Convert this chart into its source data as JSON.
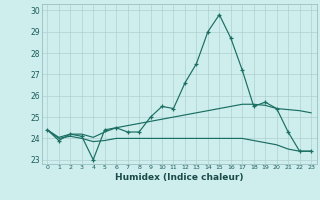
{
  "xlabel": "Humidex (Indice chaleur)",
  "bg_color": "#ceeeed",
  "grid_color": "#b0d0d0",
  "line_color": "#1a6e62",
  "x": [
    0,
    1,
    2,
    3,
    4,
    5,
    6,
    7,
    8,
    9,
    10,
    11,
    12,
    13,
    14,
    15,
    16,
    17,
    18,
    19,
    20,
    21,
    22,
    23
  ],
  "y_main": [
    24.4,
    23.9,
    24.2,
    24.1,
    23.0,
    24.4,
    24.5,
    24.3,
    24.3,
    25.0,
    25.5,
    25.4,
    26.6,
    27.5,
    29.0,
    29.8,
    28.7,
    27.2,
    25.5,
    25.7,
    25.4,
    24.3,
    23.4,
    23.4
  ],
  "y_upper": [
    24.4,
    24.05,
    24.2,
    24.2,
    24.05,
    24.3,
    24.5,
    24.6,
    24.7,
    24.8,
    24.9,
    25.0,
    25.1,
    25.2,
    25.3,
    25.4,
    25.5,
    25.6,
    25.6,
    25.55,
    25.4,
    25.35,
    25.3,
    25.2
  ],
  "y_lower": [
    24.4,
    24.0,
    24.1,
    24.0,
    23.85,
    23.9,
    24.0,
    24.0,
    24.0,
    24.0,
    24.0,
    24.0,
    24.0,
    24.0,
    24.0,
    24.0,
    24.0,
    24.0,
    23.9,
    23.8,
    23.7,
    23.5,
    23.4,
    23.4
  ],
  "ylim": [
    22.8,
    30.3
  ],
  "yticks": [
    23,
    24,
    25,
    26,
    27,
    28,
    29,
    30
  ],
  "xticks": [
    0,
    1,
    2,
    3,
    4,
    5,
    6,
    7,
    8,
    9,
    10,
    11,
    12,
    13,
    14,
    15,
    16,
    17,
    18,
    19,
    20,
    21,
    22,
    23
  ]
}
